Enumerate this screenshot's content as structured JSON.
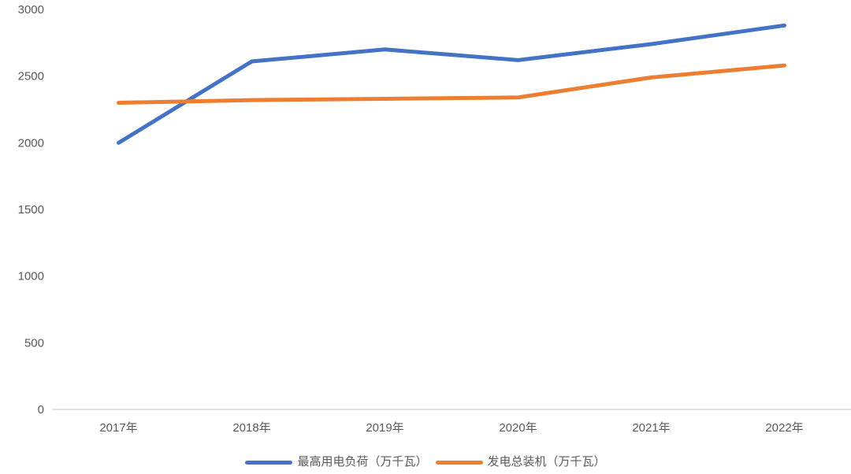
{
  "chart_data": {
    "type": "line",
    "title": "",
    "xlabel": "",
    "ylabel": "",
    "categories": [
      "2017年",
      "2018年",
      "2019年",
      "2020年",
      "2021年",
      "2022年"
    ],
    "series": [
      {
        "name": "最高用电负荷（万千瓦）",
        "color": "#4472C4",
        "values": [
          2000,
          2610,
          2700,
          2620,
          2740,
          2880
        ]
      },
      {
        "name": "发电总装机（万千瓦）",
        "color": "#ED7D31",
        "values": [
          2300,
          2320,
          2330,
          2340,
          2490,
          2580
        ]
      }
    ],
    "ylim": [
      0,
      3000
    ],
    "y_ticks": [
      0,
      500,
      1000,
      1500,
      2000,
      2500,
      3000
    ],
    "grid": false,
    "legend_position": "bottom",
    "axis_color": "#D9D9D9",
    "tick_label_color": "#595959",
    "line_width": 5
  }
}
